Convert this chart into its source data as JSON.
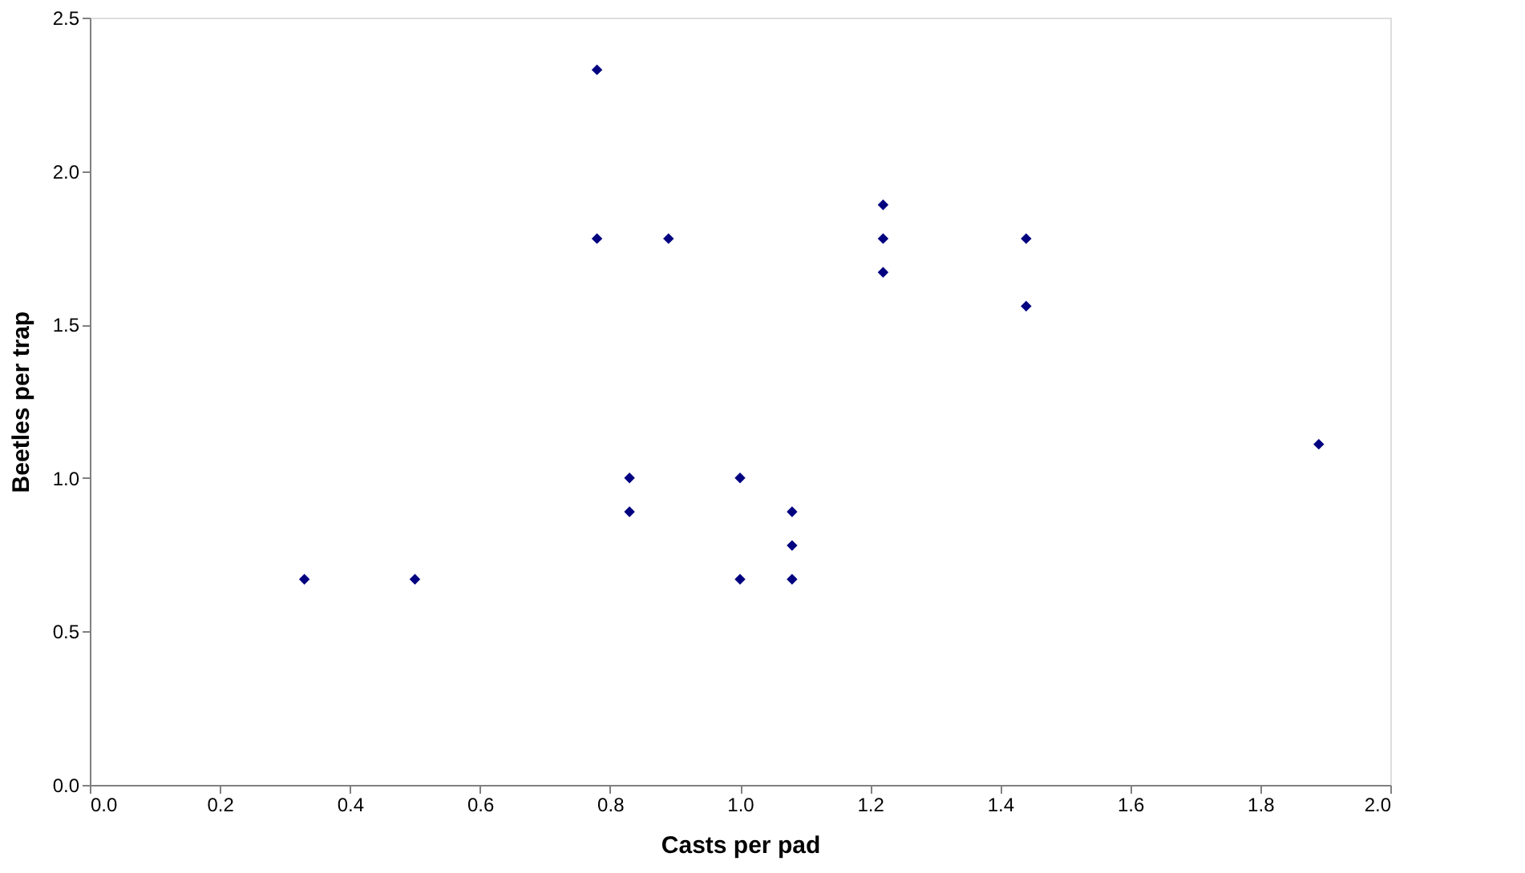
{
  "chart_data": {
    "type": "scatter",
    "xlabel": "Casts per pad",
    "ylabel": "Beetles per trap",
    "x": [
      0.33,
      0.5,
      0.78,
      0.78,
      0.89,
      0.83,
      0.83,
      1.0,
      1.0,
      1.08,
      1.08,
      1.08,
      1.22,
      1.22,
      1.22,
      1.44,
      1.44,
      1.89
    ],
    "series": [
      {
        "color": "#000080",
        "values": [
          0.67,
          0.67,
          2.33,
          1.78,
          1.78,
          1.0,
          0.89,
          1.0,
          0.67,
          0.89,
          0.78,
          0.67,
          1.89,
          1.78,
          1.67,
          1.78,
          1.56,
          1.11
        ]
      }
    ],
    "xlim": [
      0,
      2
    ],
    "ylim": [
      0,
      2.5
    ],
    "xticks": [
      {
        "value": 0,
        "label": "0.0"
      },
      {
        "value": 0.2,
        "label": "0.2"
      },
      {
        "value": 0.4,
        "label": "0.4"
      },
      {
        "value": 0.6,
        "label": "0.6"
      },
      {
        "value": 0.8,
        "label": "0.8"
      },
      {
        "value": 1,
        "label": "1.0"
      },
      {
        "value": 1.2,
        "label": "1.2"
      },
      {
        "value": 1.4,
        "label": "1.4"
      },
      {
        "value": 1.6,
        "label": "1.6"
      },
      {
        "value": 1.8,
        "label": "1.8"
      },
      {
        "value": 2,
        "label": "2.0"
      }
    ],
    "yticks": [
      {
        "value": 0,
        "label": "0.0"
      },
      {
        "value": 0.5,
        "label": "0.5"
      },
      {
        "value": 1,
        "label": "1.0"
      },
      {
        "value": 1.5,
        "label": "1.5"
      },
      {
        "value": 2,
        "label": "2.0"
      },
      {
        "value": 2.5,
        "label": "2.5"
      }
    ],
    "marker": "diamond",
    "grid": false,
    "legend": false
  }
}
